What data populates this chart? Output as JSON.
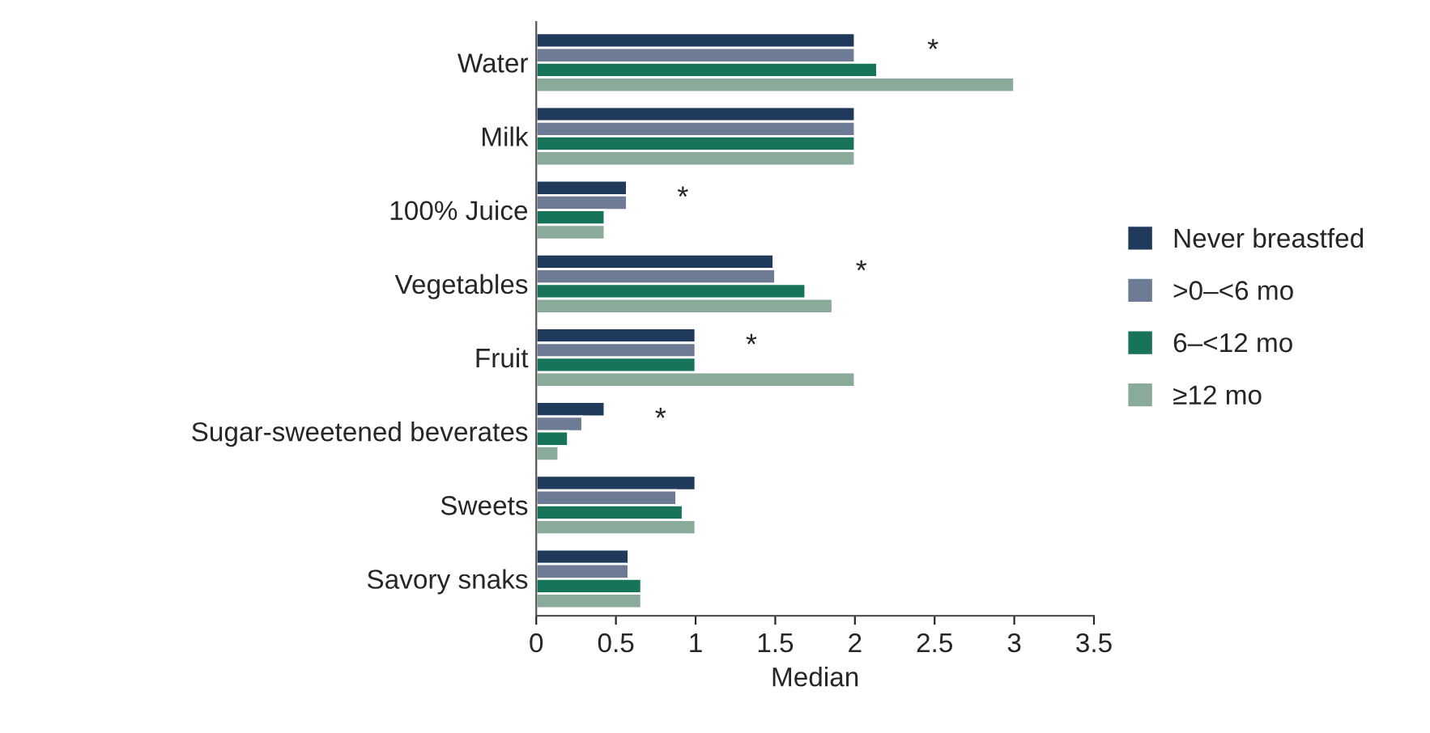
{
  "chart_data": {
    "type": "bar",
    "orientation": "horizontal",
    "xlabel": "Median",
    "categories": [
      "Water",
      "Milk",
      "100% Juice",
      "Vegetables",
      "Fruit",
      "Sugar-sweetened beverates",
      "Sweets",
      "Savory snaks"
    ],
    "series": [
      {
        "name": "Never breastfed",
        "color": "#1f3a5a",
        "values": [
          2,
          2,
          0.57,
          1.49,
          1,
          0.43,
          1,
          0.58
        ]
      },
      {
        "name": ">0–<6 mo",
        "color": "#6d7b95",
        "values": [
          2,
          2,
          0.57,
          1.5,
          1,
          0.29,
          0.88,
          0.58
        ]
      },
      {
        "name": "6–<12 mo",
        "color": "#17735a",
        "values": [
          2.14,
          2,
          0.43,
          1.69,
          1,
          0.2,
          0.92,
          0.66
        ]
      },
      {
        "name": "≥12 mo",
        "color": "#8aaa9a",
        "values": [
          3,
          2,
          0.43,
          1.86,
          2,
          0.14,
          1,
          0.66
        ]
      }
    ],
    "xlim": [
      0,
      3.5
    ],
    "xticks": [
      0,
      0.5,
      1,
      1.5,
      2,
      2.5,
      3,
      3.5
    ],
    "grid": false,
    "legend": "right",
    "annotations": [
      "*",
      "*",
      "*",
      "*",
      "*"
    ]
  }
}
